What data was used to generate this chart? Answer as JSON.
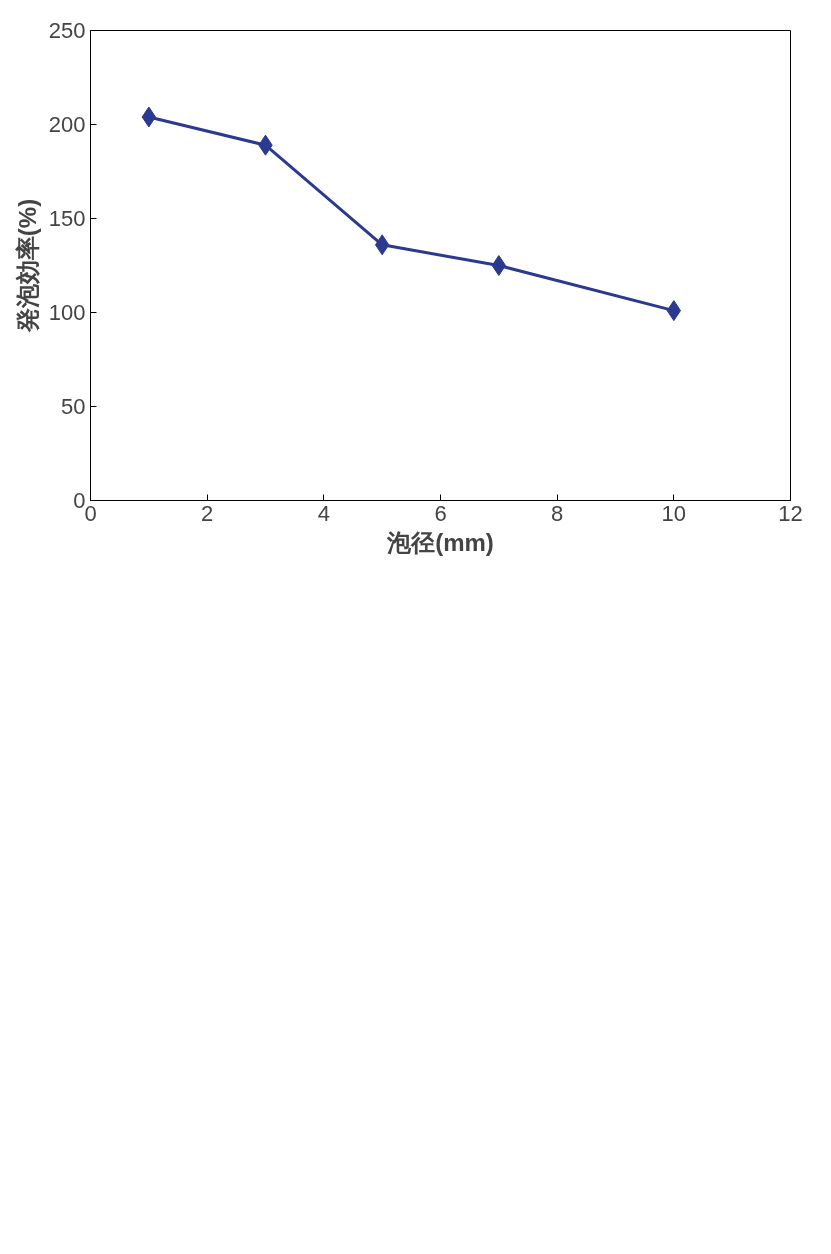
{
  "chart_data": {
    "type": "line",
    "xlabel": "泡径(mm)",
    "ylabel": "発泡効率(%)",
    "x": [
      1,
      3,
      5,
      7,
      10
    ],
    "series": [
      {
        "color": "#2b3990",
        "values": [
          204,
          189,
          136,
          125,
          101
        ]
      }
    ],
    "xlim": [
      0,
      12
    ],
    "xticks": [
      0,
      2,
      4,
      6,
      8,
      10,
      12
    ],
    "ylim": [
      0,
      250
    ],
    "yticks": [
      0,
      50,
      100,
      150,
      200,
      250
    ],
    "grid": false,
    "marker": "diamond",
    "line_style": "solid"
  }
}
